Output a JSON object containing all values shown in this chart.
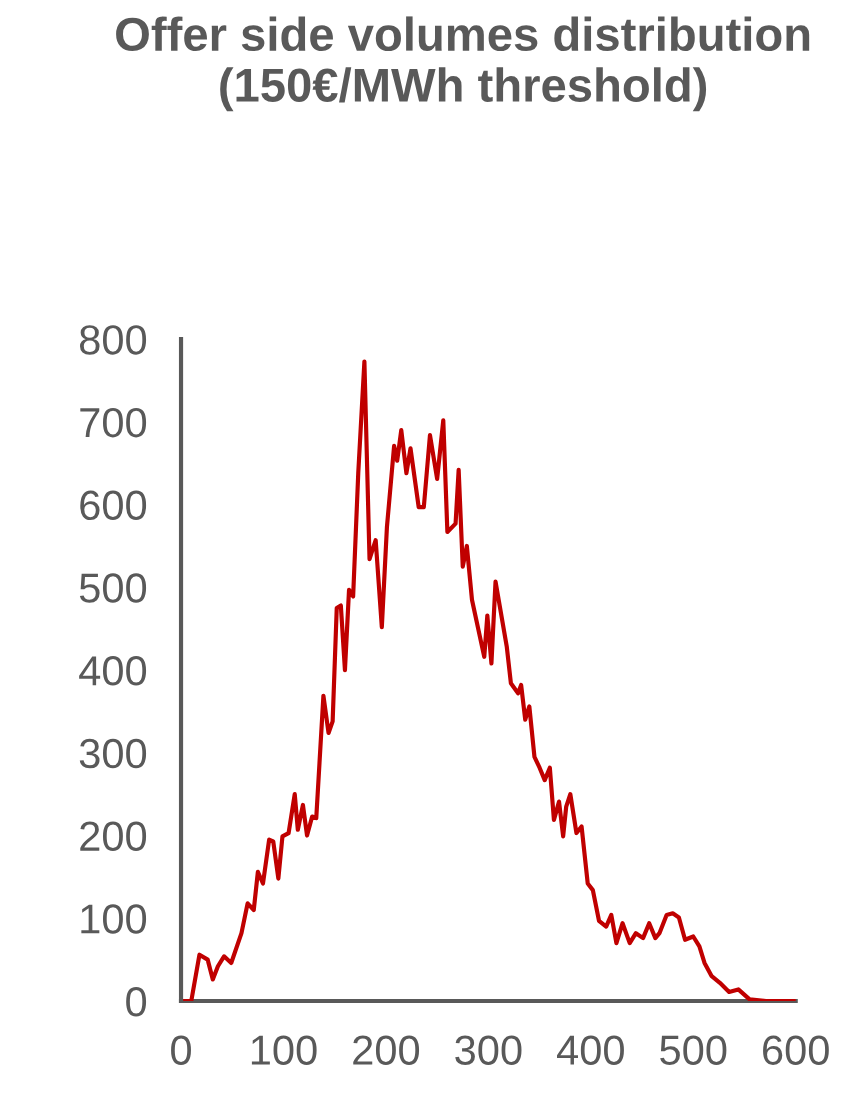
{
  "chart_data": {
    "type": "line",
    "title": "Offer side volumes distribution (150€/MWh threshold)",
    "xlim": [
      0,
      600
    ],
    "xticks": [
      0,
      100,
      200,
      300,
      400,
      500,
      600
    ],
    "ylim": [
      0,
      800
    ],
    "yticks": [
      0,
      100,
      200,
      300,
      400,
      500,
      600,
      700,
      800
    ],
    "grid": false,
    "legend": false,
    "marker": "none",
    "line_style": "solid",
    "series": [
      {
        "color": "#c00000",
        "x": [
          0,
          10,
          18,
          26,
          31,
          36,
          42,
          49,
          59,
          65,
          71,
          75,
          80,
          86,
          90,
          95,
          99,
          105,
          111,
          114,
          119,
          123,
          128,
          132,
          139,
          144,
          148,
          152,
          156,
          160,
          164,
          168,
          173,
          179,
          184,
          190,
          196,
          201,
          208,
          211,
          215,
          220,
          224,
          232,
          237,
          243,
          250,
          256,
          260,
          268,
          271,
          275,
          279,
          284,
          296,
          299,
          303,
          307,
          318,
          322,
          329,
          332,
          336,
          340,
          345,
          350,
          355,
          360,
          364,
          369,
          373,
          376,
          380,
          386,
          391,
          397,
          402,
          408,
          415,
          420,
          425,
          431,
          438,
          444,
          451,
          457,
          463,
          467,
          474,
          480,
          486,
          492,
          500,
          506,
          511,
          518,
          526,
          535,
          544,
          555,
          571,
          600
        ],
        "values": [
          0,
          0,
          56,
          50,
          26,
          42,
          54,
          46,
          82,
          118,
          110,
          156,
          142,
          195,
          193,
          148,
          199,
          203,
          250,
          207,
          237,
          200,
          223,
          221,
          369,
          324,
          338,
          475,
          478,
          400,
          497,
          489,
          638,
          773,
          534,
          557,
          452,
          573,
          671,
          653,
          690,
          638,
          668,
          597,
          597,
          684,
          631,
          702,
          567,
          577,
          642,
          525,
          550,
          485,
          416,
          466,
          408,
          507,
          428,
          384,
          372,
          382,
          340,
          356,
          295,
          282,
          267,
          282,
          219,
          241,
          199,
          235,
          250,
          203,
          211,
          142,
          134,
          97,
          90,
          104,
          70,
          94,
          70,
          82,
          76,
          94,
          76,
          82,
          104,
          106,
          101,
          74,
          78,
          66,
          46,
          30,
          22,
          11,
          14,
          2,
          0,
          0
        ]
      }
    ]
  }
}
